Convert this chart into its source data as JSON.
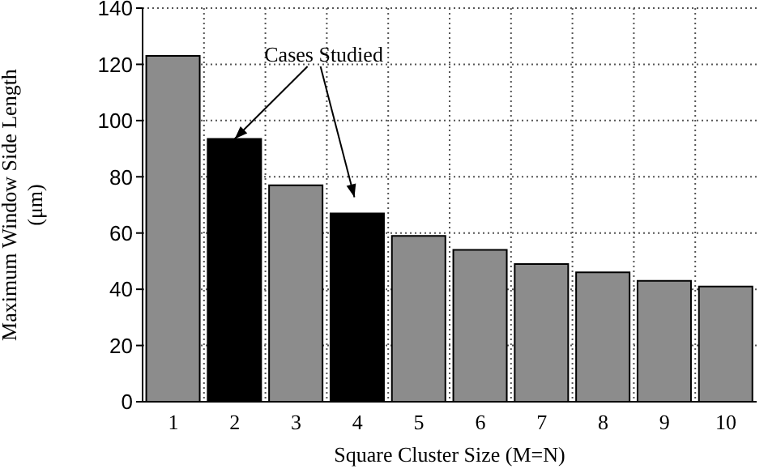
{
  "chart_data": {
    "type": "bar",
    "xlabel": "Square Cluster Size (M=N)",
    "ylabel": "Maximum Window Side Length\n(μm)",
    "categories": [
      "1",
      "2",
      "3",
      "4",
      "5",
      "6",
      "7",
      "8",
      "9",
      "10"
    ],
    "values": [
      123,
      93.5,
      77,
      67,
      59,
      54,
      49,
      46,
      43,
      41
    ],
    "colors": [
      "#8c8c8c",
      "#000000",
      "#8c8c8c",
      "#000000",
      "#8c8c8c",
      "#8c8c8c",
      "#8c8c8c",
      "#8c8c8c",
      "#8c8c8c",
      "#8c8c8c"
    ],
    "ylim": [
      0,
      140
    ],
    "yticks": [
      0,
      20,
      40,
      60,
      80,
      100,
      120,
      140
    ],
    "grid": true,
    "annotations": [
      {
        "text": "Cases Studied",
        "x": "2",
        "y": 93.5
      }
    ]
  }
}
